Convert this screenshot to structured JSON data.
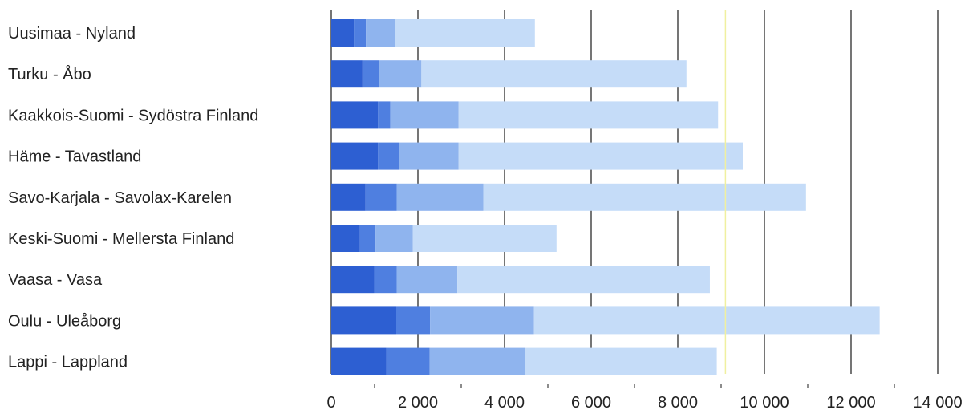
{
  "chart_data": {
    "type": "bar",
    "orientation": "horizontal",
    "stacked": true,
    "title": "",
    "xlabel": "",
    "ylabel": "",
    "categories": [
      "Uusimaa - Nyland",
      "Turku - Åbo",
      "Kaakkois-Suomi - Sydöstra Finland",
      "Häme - Tavastland",
      "Savo-Karjala - Savolax-Karelen",
      "Keski-Suomi - Mellersta Finland",
      "Vaasa - Vasa",
      "Oulu - Uleåborg",
      "Lappi - Lappland"
    ],
    "series": [
      {
        "values": [
          520,
          720,
          1080,
          1080,
          790,
          660,
          990,
          1500,
          1270
        ],
        "color": "#2d5fd2"
      },
      {
        "values": [
          280,
          380,
          280,
          480,
          720,
          360,
          520,
          780,
          1000
        ],
        "color": "#4f7fe0"
      },
      {
        "values": [
          680,
          980,
          1580,
          1380,
          2000,
          860,
          1400,
          2400,
          2200
        ],
        "color": "#8fb4ee"
      },
      {
        "values": [
          3220,
          6120,
          5990,
          6560,
          7450,
          3320,
          5830,
          7980,
          4430
        ],
        "color": "#c5dcf8"
      }
    ],
    "xlim": [
      0,
      14000
    ],
    "x_ticks": [
      {
        "value": 0,
        "label": "0"
      },
      {
        "value": 2000,
        "label": "2 000"
      },
      {
        "value": 4000,
        "label": "4 000"
      },
      {
        "value": 6000,
        "label": "6 000"
      },
      {
        "value": 8000,
        "label": "8 000"
      },
      {
        "value": 10000,
        "label": "10 000"
      },
      {
        "value": 12000,
        "label": "12 000"
      },
      {
        "value": 14000,
        "label": "14 000"
      }
    ],
    "reference_line": {
      "value": 9100,
      "color": "#f0f0a0"
    },
    "grid": true,
    "legend": "none"
  }
}
